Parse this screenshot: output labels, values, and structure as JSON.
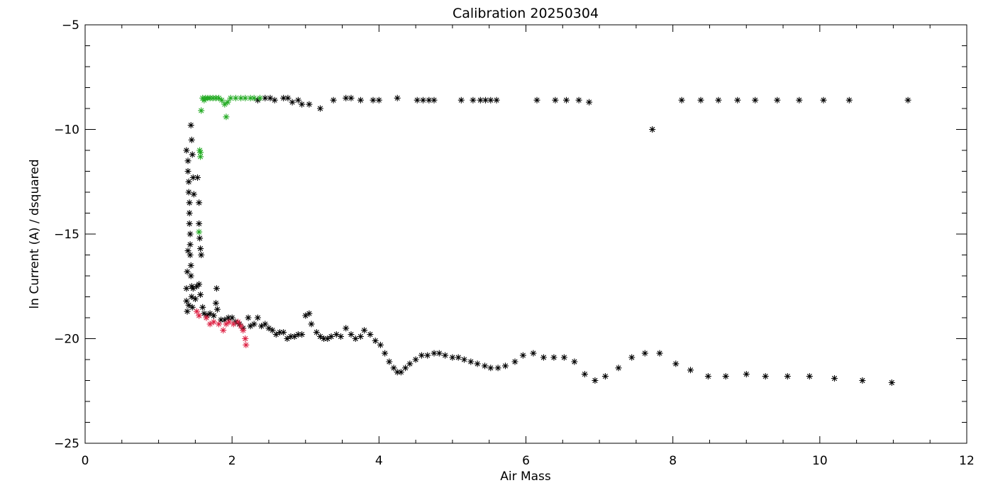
{
  "chart_data": {
    "type": "scatter",
    "title": "Calibration 20250304",
    "xlabel": "Air Mass",
    "ylabel": "ln Current (A) / dsquared",
    "xlim": [
      0,
      12
    ],
    "ylim": [
      -25,
      -5
    ],
    "xticks": [
      0,
      2,
      4,
      6,
      8,
      10,
      12
    ],
    "yticks": [
      -25,
      -20,
      -15,
      -10,
      -5
    ],
    "grid": false,
    "legend": "none",
    "marker": "asterisk",
    "series": [
      {
        "color": "#000000",
        "points": [
          [
            1.38,
            -11.0
          ],
          [
            1.4,
            -11.5
          ],
          [
            1.4,
            -12.0
          ],
          [
            1.41,
            -12.5
          ],
          [
            1.41,
            -13.0
          ],
          [
            1.42,
            -13.5
          ],
          [
            1.42,
            -14.0
          ],
          [
            1.42,
            -14.5
          ],
          [
            1.43,
            -15.0
          ],
          [
            1.43,
            -15.5
          ],
          [
            1.43,
            -16.0
          ],
          [
            1.44,
            -16.5
          ],
          [
            1.44,
            -17.0
          ],
          [
            1.45,
            -17.5
          ],
          [
            1.45,
            -18.0
          ],
          [
            1.46,
            -18.5
          ],
          [
            1.44,
            -9.8
          ],
          [
            1.45,
            -10.5
          ],
          [
            1.46,
            -11.2
          ],
          [
            1.47,
            -12.3
          ],
          [
            1.48,
            -13.1
          ],
          [
            1.4,
            -15.8
          ],
          [
            1.39,
            -16.8
          ],
          [
            1.38,
            -17.6
          ],
          [
            1.38,
            -18.2
          ],
          [
            1.39,
            -18.7
          ],
          [
            1.41,
            -18.4
          ],
          [
            1.47,
            -17.6
          ],
          [
            1.5,
            -18.1
          ],
          [
            1.52,
            -17.5
          ],
          [
            1.55,
            -17.4
          ],
          [
            1.57,
            -17.9
          ],
          [
            1.6,
            -18.5
          ],
          [
            1.53,
            -12.3
          ],
          [
            1.55,
            -13.5
          ],
          [
            1.55,
            -14.5
          ],
          [
            1.56,
            -15.2
          ],
          [
            1.57,
            -15.7
          ],
          [
            1.58,
            -16.0
          ],
          [
            1.62,
            -18.8
          ],
          [
            1.66,
            -18.9
          ],
          [
            1.7,
            -18.8
          ],
          [
            1.75,
            -18.9
          ],
          [
            1.79,
            -17.6
          ],
          [
            1.78,
            -18.3
          ],
          [
            1.8,
            -18.6
          ],
          [
            1.85,
            -19.1
          ],
          [
            1.9,
            -19.1
          ],
          [
            1.95,
            -19.0
          ],
          [
            2.0,
            -19.0
          ],
          [
            2.05,
            -19.2
          ],
          [
            2.1,
            -19.3
          ],
          [
            2.15,
            -19.5
          ],
          [
            2.22,
            -19.0
          ],
          [
            2.25,
            -19.4
          ],
          [
            2.3,
            -19.3
          ],
          [
            2.35,
            -19.0
          ],
          [
            2.4,
            -19.4
          ],
          [
            2.45,
            -19.3
          ],
          [
            2.5,
            -19.5
          ],
          [
            2.55,
            -19.6
          ],
          [
            2.6,
            -19.8
          ],
          [
            2.65,
            -19.7
          ],
          [
            2.7,
            -19.7
          ],
          [
            2.75,
            -20.0
          ],
          [
            2.8,
            -19.9
          ],
          [
            2.85,
            -19.9
          ],
          [
            2.9,
            -19.8
          ],
          [
            2.95,
            -19.8
          ],
          [
            3.0,
            -18.9
          ],
          [
            3.05,
            -18.8
          ],
          [
            3.08,
            -19.3
          ],
          [
            3.15,
            -19.7
          ],
          [
            3.2,
            -19.9
          ],
          [
            3.25,
            -20.0
          ],
          [
            3.3,
            -20.0
          ],
          [
            3.35,
            -19.9
          ],
          [
            3.42,
            -19.8
          ],
          [
            3.48,
            -19.9
          ],
          [
            3.55,
            -19.5
          ],
          [
            3.62,
            -19.8
          ],
          [
            3.68,
            -20.0
          ],
          [
            3.75,
            -19.9
          ],
          [
            3.8,
            -19.6
          ],
          [
            3.88,
            -19.8
          ],
          [
            3.95,
            -20.1
          ],
          [
            4.02,
            -20.3
          ],
          [
            4.08,
            -20.7
          ],
          [
            4.14,
            -21.1
          ],
          [
            4.2,
            -21.4
          ],
          [
            4.25,
            -21.6
          ],
          [
            4.3,
            -21.6
          ],
          [
            4.36,
            -21.4
          ],
          [
            4.42,
            -21.2
          ],
          [
            4.5,
            -21.0
          ],
          [
            4.58,
            -20.8
          ],
          [
            4.66,
            -20.8
          ],
          [
            4.75,
            -20.7
          ],
          [
            4.82,
            -20.7
          ],
          [
            4.9,
            -20.8
          ],
          [
            5.0,
            -20.9
          ],
          [
            5.08,
            -20.9
          ],
          [
            5.16,
            -21.0
          ],
          [
            5.25,
            -21.1
          ],
          [
            5.34,
            -21.2
          ],
          [
            5.44,
            -21.3
          ],
          [
            5.52,
            -21.4
          ],
          [
            5.62,
            -21.4
          ],
          [
            5.72,
            -21.3
          ],
          [
            5.85,
            -21.1
          ],
          [
            5.96,
            -20.8
          ],
          [
            6.1,
            -20.7
          ],
          [
            6.24,
            -20.9
          ],
          [
            6.38,
            -20.9
          ],
          [
            6.52,
            -20.9
          ],
          [
            6.66,
            -21.1
          ],
          [
            6.8,
            -21.7
          ],
          [
            6.94,
            -22.0
          ],
          [
            7.08,
            -21.8
          ],
          [
            7.26,
            -21.4
          ],
          [
            7.44,
            -20.9
          ],
          [
            7.62,
            -20.7
          ],
          [
            7.82,
            -20.7
          ],
          [
            8.04,
            -21.2
          ],
          [
            8.24,
            -21.5
          ],
          [
            8.48,
            -21.8
          ],
          [
            8.72,
            -21.8
          ],
          [
            9.0,
            -21.7
          ],
          [
            9.26,
            -21.8
          ],
          [
            9.56,
            -21.8
          ],
          [
            9.86,
            -21.8
          ],
          [
            10.2,
            -21.9
          ],
          [
            10.58,
            -22.0
          ],
          [
            10.98,
            -22.1
          ],
          [
            2.35,
            -8.6
          ],
          [
            2.45,
            -8.5
          ],
          [
            2.52,
            -8.5
          ],
          [
            2.58,
            -8.6
          ],
          [
            2.7,
            -8.5
          ],
          [
            2.76,
            -8.5
          ],
          [
            2.82,
            -8.7
          ],
          [
            2.9,
            -8.6
          ],
          [
            2.95,
            -8.8
          ],
          [
            3.05,
            -8.8
          ],
          [
            3.2,
            -9.0
          ],
          [
            3.38,
            -8.6
          ],
          [
            3.55,
            -8.5
          ],
          [
            3.62,
            -8.5
          ],
          [
            3.75,
            -8.6
          ],
          [
            3.92,
            -8.6
          ],
          [
            4.0,
            -8.6
          ],
          [
            4.25,
            -8.5
          ],
          [
            4.52,
            -8.6
          ],
          [
            4.6,
            -8.6
          ],
          [
            4.68,
            -8.6
          ],
          [
            4.75,
            -8.6
          ],
          [
            5.12,
            -8.6
          ],
          [
            5.28,
            -8.6
          ],
          [
            5.38,
            -8.6
          ],
          [
            5.45,
            -8.6
          ],
          [
            5.52,
            -8.6
          ],
          [
            5.6,
            -8.6
          ],
          [
            6.15,
            -8.6
          ],
          [
            6.4,
            -8.6
          ],
          [
            6.55,
            -8.6
          ],
          [
            6.72,
            -8.6
          ],
          [
            6.86,
            -8.7
          ],
          [
            7.72,
            -10.0
          ],
          [
            8.12,
            -8.6
          ],
          [
            8.38,
            -8.6
          ],
          [
            8.62,
            -8.6
          ],
          [
            8.88,
            -8.6
          ],
          [
            9.12,
            -8.6
          ],
          [
            9.42,
            -8.6
          ],
          [
            9.72,
            -8.6
          ],
          [
            10.05,
            -8.6
          ],
          [
            10.4,
            -8.6
          ],
          [
            11.2,
            -8.6
          ]
        ]
      },
      {
        "color": "#22aa22",
        "points": [
          [
            1.55,
            -14.9
          ],
          [
            1.56,
            -11.0
          ],
          [
            1.57,
            -11.3
          ],
          [
            1.57,
            -11.1
          ],
          [
            1.58,
            -9.1
          ],
          [
            1.6,
            -8.5
          ],
          [
            1.62,
            -8.6
          ],
          [
            1.64,
            -8.5
          ],
          [
            1.67,
            -8.5
          ],
          [
            1.7,
            -8.5
          ],
          [
            1.74,
            -8.5
          ],
          [
            1.78,
            -8.5
          ],
          [
            1.82,
            -8.5
          ],
          [
            1.86,
            -8.6
          ],
          [
            1.9,
            -8.8
          ],
          [
            1.92,
            -9.4
          ],
          [
            1.94,
            -8.7
          ],
          [
            1.98,
            -8.5
          ],
          [
            2.05,
            -8.5
          ],
          [
            2.12,
            -8.5
          ],
          [
            2.18,
            -8.5
          ],
          [
            2.25,
            -8.5
          ],
          [
            2.3,
            -8.5
          ],
          [
            2.38,
            -8.5
          ]
        ]
      },
      {
        "color": "#dd2244",
        "points": [
          [
            1.52,
            -18.7
          ],
          [
            1.55,
            -18.9
          ],
          [
            1.65,
            -19.0
          ],
          [
            1.7,
            -19.3
          ],
          [
            1.75,
            -19.2
          ],
          [
            1.82,
            -19.3
          ],
          [
            1.88,
            -19.6
          ],
          [
            1.92,
            -19.3
          ],
          [
            1.96,
            -19.2
          ],
          [
            2.02,
            -19.3
          ],
          [
            2.08,
            -19.2
          ],
          [
            2.12,
            -19.4
          ],
          [
            2.15,
            -19.6
          ],
          [
            2.18,
            -20.0
          ],
          [
            2.19,
            -20.3
          ]
        ]
      }
    ]
  }
}
